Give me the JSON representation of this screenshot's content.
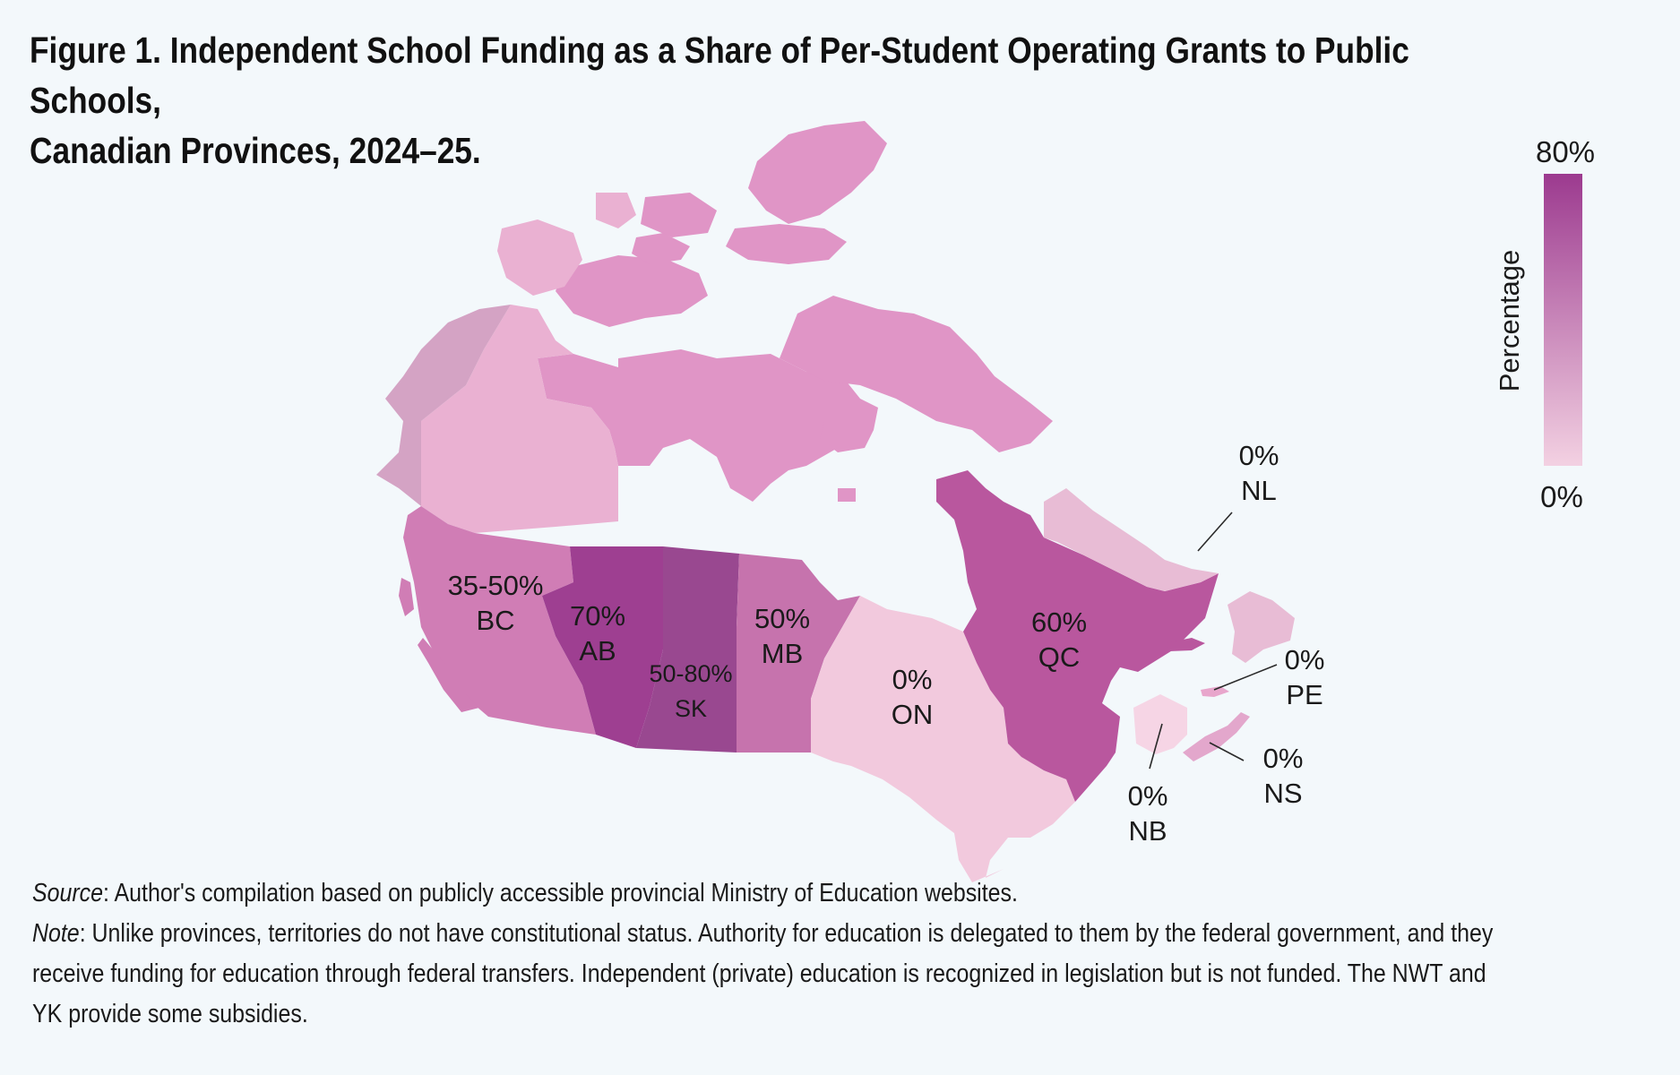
{
  "title": {
    "line1": "Figure 1. Independent School Funding as a Share of Per-Student Operating Grants to Public Schools,",
    "line2": "Canadian Provinces, 2024–25."
  },
  "legend": {
    "max_label": "80%",
    "min_label": "0%",
    "axis_label": "Percentage",
    "color_max": "#9c3a8f",
    "color_min": "#f3d1e2"
  },
  "regions": {
    "bc": {
      "value": "35-50%",
      "abbr": "BC",
      "color": "#d07db5"
    },
    "ab": {
      "value": "70%",
      "abbr": "AB",
      "color": "#9e3f91"
    },
    "sk": {
      "value": "50-80%",
      "abbr": "SK",
      "color": "#994890"
    },
    "mb": {
      "value": "50%",
      "abbr": "MB",
      "color": "#c673ad"
    },
    "on": {
      "value": "0%",
      "abbr": "ON",
      "color": "#f2c9dd"
    },
    "qc": {
      "value": "60%",
      "abbr": "QC",
      "color": "#b9579e"
    },
    "nl": {
      "value": "0%",
      "abbr": "NL",
      "color": "#e8bcd5"
    },
    "pe": {
      "value": "0%",
      "abbr": "PE",
      "color": "#e8a6cc"
    },
    "ns": {
      "value": "0%",
      "abbr": "NS",
      "color": "#e3a7cc"
    },
    "nb": {
      "value": "0%",
      "abbr": "NB",
      "color": "#f6d5e5"
    },
    "yt": {
      "color": "#d4a3c4"
    },
    "nt": {
      "color": "#eab1d2"
    },
    "nu": {
      "color": "#e095c6"
    }
  },
  "notes": {
    "source_label": "Source",
    "source_text": ": Author's compilation based on publicly accessible provincial Ministry of Education websites.",
    "note_label": "Note",
    "note_text_1": ": Unlike provinces, territories do not have constitutional status. Authority for education is delegated to them by the federal government, and they",
    "note_text_2": "receive funding for education through federal transfers. Independent (private) education is recognized in legislation but is not funded. The NWT and",
    "note_text_3": "YK provide some subsidies."
  }
}
